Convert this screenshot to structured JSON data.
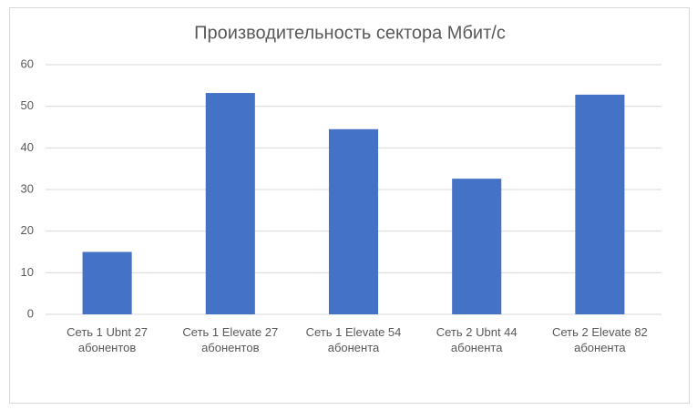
{
  "chart_data": {
    "type": "bar",
    "title": "Производительность сектора Мбит/с",
    "categories": [
      "Сеть 1 Ubnt 27 абонентов",
      "Сеть 1  Elevate 27 абонентов",
      "Сеть 1  Elevate 54 абонента",
      "Сеть 2  Ubnt 44 абонента",
      "Сеть 2 Elevate 82 абонента"
    ],
    "values": [
      15,
      53.2,
      44.5,
      32.6,
      52.8
    ],
    "color": "#4472c4",
    "ylim": [
      0,
      60
    ],
    "yticks": [
      0,
      10,
      20,
      30,
      40,
      50,
      60
    ],
    "grid": true
  }
}
